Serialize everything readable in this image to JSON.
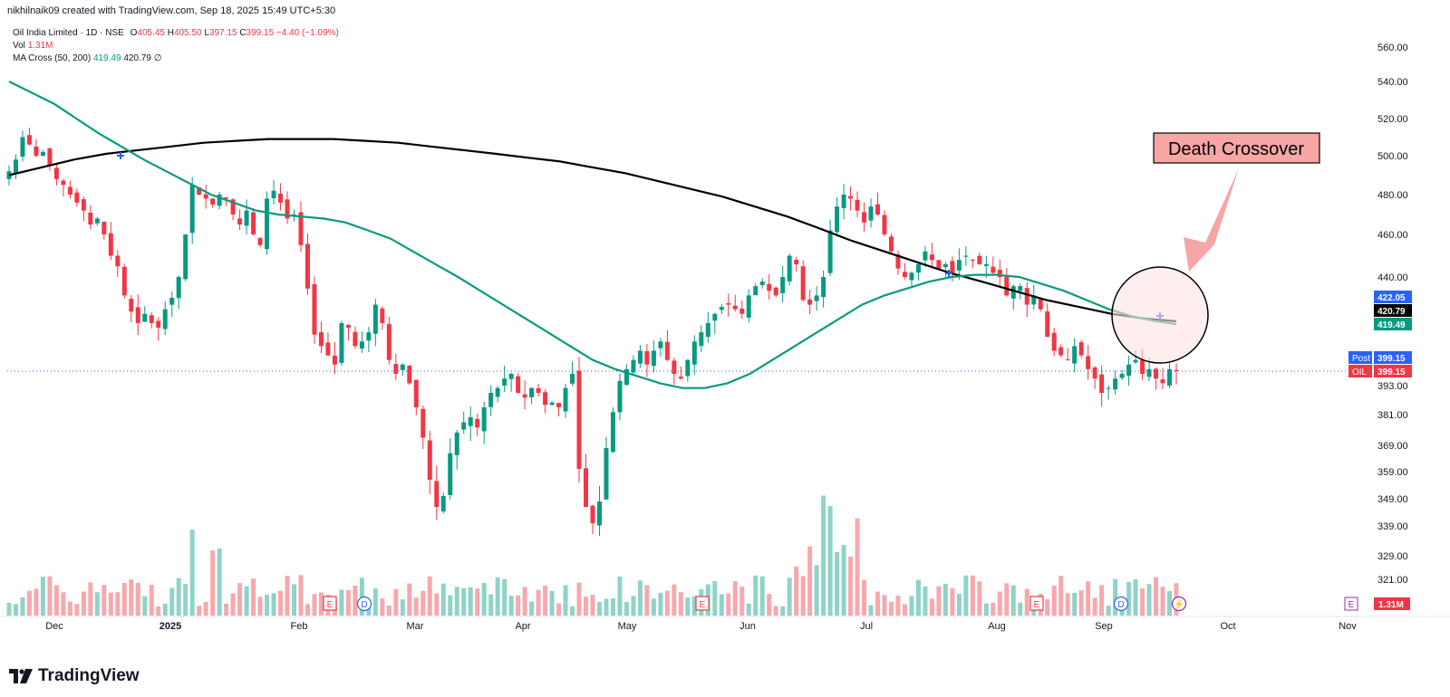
{
  "header": {
    "credit": "nikhilnaik09 created with TradingView.com, Sep 18, 2025 15:49 UTC+5:30"
  },
  "legend": {
    "symbol": "Oil India Limited · 1D · NSE",
    "o_label": "O",
    "o": "405.45",
    "h_label": "H",
    "h": "405.50",
    "l_label": "L",
    "l": "397.15",
    "c_label": "C",
    "c": "399.15",
    "change": "−4.40 (−1.09%)",
    "vol_label": "Vol",
    "vol": "1.31M",
    "ma_label": "MA Cross (50, 200)",
    "ma50": "419.49",
    "ma200": "420.79",
    "ma_icon": "∅"
  },
  "annotation": {
    "text": "Death Crossover"
  },
  "footer": {
    "brand": "TradingView"
  },
  "colors": {
    "up": "#089981",
    "down": "#f23645",
    "ma50": "#089981",
    "ma200": "#000000",
    "vol_up": "#8fd3c8",
    "vol_down": "#f7a8ad",
    "annotation_bg": "#f8a5a5",
    "circle_fill": "#fde3e3"
  },
  "chart_data": {
    "type": "candlestick",
    "symbol": "Oil India Limited",
    "interval": "1D",
    "exchange": "NSE",
    "y_ticks": [
      "560.00",
      "540.00",
      "520.00",
      "500.00",
      "480.00",
      "460.00",
      "440.00",
      "422.05",
      "420.79",
      "419.49",
      "399.15",
      "393.00",
      "381.00",
      "369.00",
      "359.00",
      "349.00",
      "339.00",
      "329.00",
      "321.00"
    ],
    "ylim": [
      318,
      566
    ],
    "x_ticks": [
      "Dec",
      "2025",
      "Feb",
      "Mar",
      "Apr",
      "May",
      "Jun",
      "Jul",
      "Aug",
      "Sep",
      "Oct",
      "Nov"
    ],
    "price_labels": [
      {
        "label": "",
        "value": "422.05",
        "color": "#2962ff"
      },
      {
        "label": "",
        "value": "420.79",
        "color": "#000000"
      },
      {
        "label": "",
        "value": "419.49",
        "color": "#089981"
      },
      {
        "label": "Post",
        "value": "399.15",
        "color": "#2962ff"
      },
      {
        "label": "OIL",
        "value": "399.15",
        "color": "#f23645"
      }
    ],
    "volume_label": "1.31M",
    "event_markers": [
      {
        "type": "E",
        "month_index": 2.55
      },
      {
        "type": "D",
        "month_index": 2.85
      },
      {
        "type": "E",
        "month_index": 6.1
      },
      {
        "type": "E",
        "month_index": 10.15
      },
      {
        "type": "E",
        "month_index": 13.6
      },
      {
        "type": "D",
        "month_index": 14.4
      },
      {
        "type": "⚡",
        "month_index": 14.95
      }
    ],
    "candles_close": [
      492,
      498,
      510,
      506,
      500,
      502,
      495,
      488,
      485,
      480,
      476,
      472,
      465,
      468,
      460,
      450,
      445,
      432,
      425,
      420,
      424,
      420,
      418,
      426,
      431,
      440,
      460,
      485,
      480,
      478,
      475,
      480,
      478,
      470,
      465,
      472,
      460,
      455,
      478,
      482,
      476,
      468,
      470,
      455,
      435,
      415,
      410,
      406,
      402,
      420,
      418,
      410,
      412,
      416,
      428,
      420,
      404,
      398,
      402,
      394,
      384,
      372,
      356,
      346,
      350,
      366,
      374,
      378,
      380,
      376,
      384,
      390,
      392,
      396,
      398,
      390,
      388,
      392,
      390,
      385,
      386,
      384,
      392,
      398,
      360,
      346,
      340,
      348,
      368,
      382,
      395,
      400,
      404,
      408,
      402,
      408,
      412,
      404,
      398,
      396,
      404,
      412,
      416,
      420,
      424,
      427,
      428,
      426,
      424,
      432,
      436,
      438,
      434,
      432,
      440,
      450,
      446,
      430,
      428,
      432,
      440,
      462,
      474,
      480,
      478,
      472,
      466,
      474,
      470,
      460,
      452,
      444,
      440,
      442,
      446,
      452,
      448,
      444,
      446,
      442,
      448,
      450,
      448,
      446,
      446,
      442,
      440,
      432,
      436,
      436,
      428,
      432,
      426,
      414,
      408,
      406,
      404,
      410,
      406,
      400,
      396,
      390,
      392,
      396,
      398,
      402,
      404,
      398,
      400,
      396,
      394,
      400,
      399.15
    ],
    "ma50": [
      540,
      534,
      528,
      520,
      512,
      505,
      498,
      492,
      486,
      480,
      476,
      472,
      470,
      469,
      468,
      466,
      462,
      458,
      452,
      446,
      440,
      434,
      428,
      422,
      416,
      410,
      404,
      400,
      397,
      394,
      392,
      392,
      394,
      398,
      404,
      410,
      416,
      422,
      428,
      432,
      435,
      438,
      440,
      441,
      441,
      440,
      437,
      434,
      430,
      426,
      423,
      421,
      419.49
    ],
    "ma200": [
      490,
      494,
      498,
      501,
      503,
      505,
      507,
      508,
      509,
      509,
      509,
      508,
      507,
      505,
      503,
      501,
      499,
      497,
      494,
      491,
      487,
      483,
      479,
      474,
      469,
      463,
      457,
      452,
      447,
      442,
      438,
      434,
      430,
      427,
      424,
      422,
      420.79
    ]
  }
}
